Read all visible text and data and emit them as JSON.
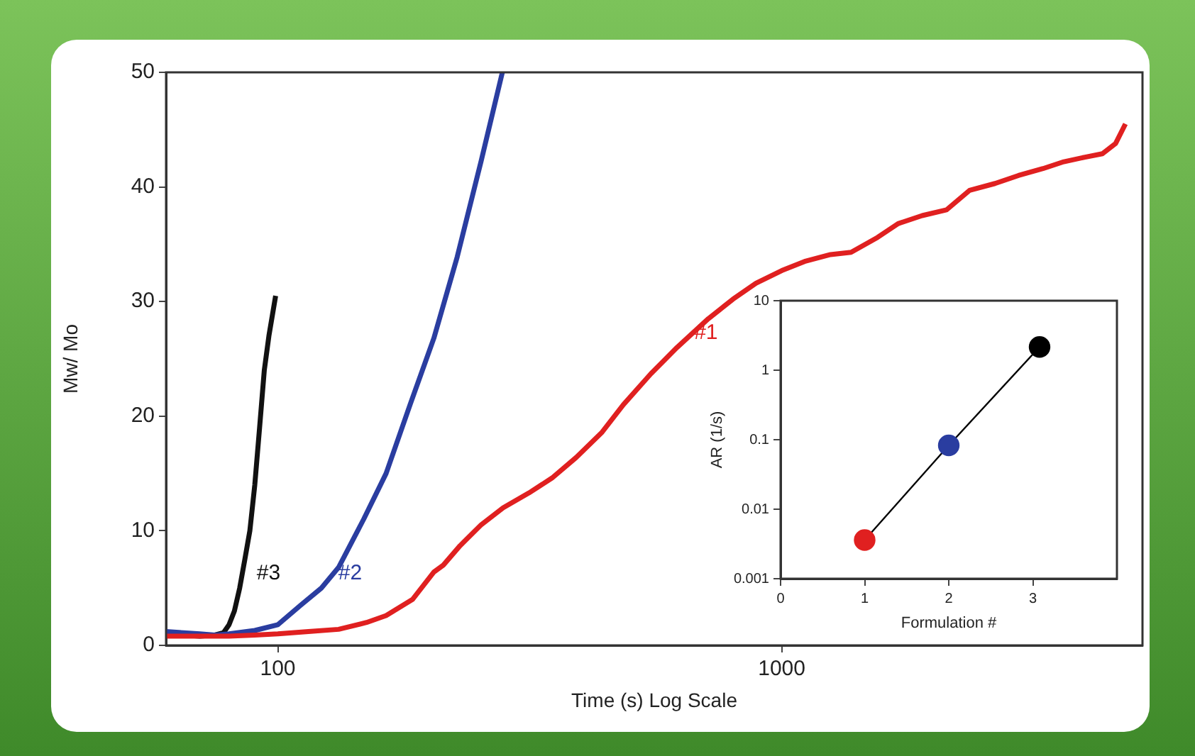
{
  "chart_data": [
    {
      "type": "line",
      "xlabel": "Time (s) Log Scale",
      "ylabel": "Mw/ Mo",
      "log": "x",
      "xlim": [
        60,
        5200
      ],
      "xticks": [
        100,
        1000
      ],
      "ylim": [
        0,
        50
      ],
      "yticks": [
        0,
        10,
        20,
        30,
        40,
        50
      ],
      "grid": false,
      "legend": false,
      "series": [
        {
          "name": "#1",
          "color": "#e02020",
          "x": [
            60,
            70,
            80,
            90,
            100,
            115,
            132,
            150,
            164,
            185,
            204,
            213,
            230,
            253,
            280,
            315,
            350,
            391,
            440,
            485,
            550,
            620,
            715,
            800,
            889,
            1000,
            1110,
            1250,
            1373,
            1550,
            1702,
            1900,
            2124,
            2360,
            2650,
            2950,
            3300,
            3630,
            4000,
            4330,
            4600,
            4810
          ],
          "values": [
            0.8,
            0.8,
            0.8,
            0.9,
            1.0,
            1.2,
            1.4,
            2.0,
            2.6,
            4.0,
            6.4,
            7,
            8.7,
            10.5,
            12,
            13.3,
            14.6,
            16.4,
            18.6,
            21,
            23.7,
            26,
            28.5,
            30.2,
            31.6,
            32.7,
            33.5,
            34.1,
            34.3,
            35.6,
            36.8,
            37.5,
            38,
            39.7,
            40.3,
            41,
            41.6,
            42.2,
            42.6,
            42.9,
            43.8,
            45.5
          ]
        },
        {
          "name": "#2",
          "color": "#2a3da0",
          "x": [
            60,
            65,
            70,
            75,
            80,
            90,
            100,
            111,
            122,
            132,
            148,
            164,
            183,
            204,
            227,
            253,
            279
          ],
          "values": [
            1.2,
            1.1,
            1.0,
            0.9,
            1.0,
            1.3,
            1.8,
            3.5,
            5,
            6.8,
            11,
            15,
            21,
            26.8,
            33.9,
            42.2,
            50
          ]
        },
        {
          "name": "#3",
          "color": "#111111",
          "x": [
            60,
            65,
            70,
            75,
            78,
            80,
            82,
            84,
            86,
            88,
            90,
            92,
            94,
            96,
            99
          ],
          "values": [
            1,
            0.9,
            0.8,
            0.9,
            1.1,
            1.8,
            3,
            5,
            7.5,
            10,
            14,
            19,
            24,
            27,
            30.5
          ]
        }
      ]
    },
    {
      "type": "line",
      "xlabel": "Formulation #",
      "ylabel": "AR (1/s)",
      "log": "y",
      "xlim": [
        0,
        4
      ],
      "xticks": [
        0,
        1,
        2,
        3
      ],
      "ylim": [
        0.001,
        10
      ],
      "yticks": [
        0.001,
        0.01,
        0.1,
        1,
        10
      ],
      "grid": false,
      "legend": false,
      "marker": "circle",
      "series": [
        {
          "color": "#000000",
          "x": [
            1,
            2,
            3.08
          ],
          "values": [
            0.0036,
            0.083,
            2.16
          ],
          "colors": [
            "#e02020",
            "#2a3da0",
            "#000000"
          ]
        }
      ]
    }
  ]
}
